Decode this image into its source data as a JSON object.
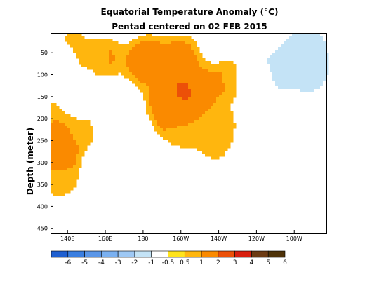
{
  "chart_data": {
    "type": "heatmap",
    "title": "Equatorial Temperature Anomaly (°C)",
    "subtitle": "Pentad centered on 02 FEB 2015",
    "ylabel": "Depth (meter)",
    "xlabel": "",
    "x_ticks": [
      "140E",
      "160E",
      "180",
      "160W",
      "140W",
      "120W",
      "100W"
    ],
    "x_tick_lon": [
      140,
      160,
      180,
      200,
      220,
      240,
      260
    ],
    "xlim_lon": [
      131,
      277
    ],
    "y_ticks": [
      50,
      100,
      150,
      200,
      250,
      300,
      350,
      400,
      450
    ],
    "ylim": [
      5,
      460
    ],
    "y_reversed": true,
    "colorbar": {
      "labels": [
        "-6",
        "-5",
        "-4",
        "-3",
        "-2",
        "-1",
        "-0.5",
        "0.5",
        "1",
        "2",
        "3",
        "4",
        "5",
        "6"
      ],
      "bins": [
        -7,
        -6,
        -5,
        -4,
        -3,
        -2,
        -1,
        -0.5,
        0.5,
        1,
        2,
        3,
        4,
        5,
        6
      ],
      "colors": [
        "#1f5fd0",
        "#3a7ee0",
        "#5a96e8",
        "#7ab0f0",
        "#9ec8f4",
        "#c4e3f6",
        "#ffffff",
        "#ffe31c",
        "#ffb60e",
        "#fa8a00",
        "#ec5008",
        "#d81e0e",
        "#6c3a12",
        "#4e3208"
      ]
    },
    "anomaly_features": [
      {
        "lon": 180,
        "depth": 75,
        "value": 1.3
      },
      {
        "lon": 184,
        "depth": 60,
        "value": 1.1
      },
      {
        "lon": 200,
        "depth": 60,
        "value": 1.5
      },
      {
        "lon": 160,
        "depth": 60,
        "value": 1.0
      },
      {
        "lon": 199,
        "depth": 150,
        "value": 3.1
      },
      {
        "lon": 211,
        "depth": 130,
        "value": 1.4
      },
      {
        "lon": 195,
        "depth": 130,
        "value": 1.6
      },
      {
        "lon": 192,
        "depth": 170,
        "value": 1.1
      },
      {
        "lon": 197,
        "depth": 205,
        "value": 0.9
      },
      {
        "lon": 204,
        "depth": 220,
        "value": 0.8
      },
      {
        "lon": 221,
        "depth": 210,
        "value": 0.7
      },
      {
        "lon": 226,
        "depth": 110,
        "value": 1.0
      },
      {
        "lon": 218,
        "depth": 260,
        "value": 0.6
      },
      {
        "lon": 141,
        "depth": 115,
        "value": 0.8
      },
      {
        "lon": 135,
        "depth": 250,
        "value": 1.6
      },
      {
        "lon": 135,
        "depth": 300,
        "value": 1.2
      },
      {
        "lon": 139,
        "depth": 160,
        "value": 0.9
      },
      {
        "lon": 136,
        "depth": 340,
        "value": 0.7
      },
      {
        "lon": 147,
        "depth": 230,
        "value": 0.7
      },
      {
        "lon": 144,
        "depth": 150,
        "value": -0.7
      },
      {
        "lon": 143,
        "depth": 30,
        "value": 0.6
      },
      {
        "lon": 133,
        "depth": 90,
        "value": -0.7
      },
      {
        "lon": 265,
        "depth": 60,
        "value": -2.6
      },
      {
        "lon": 255,
        "depth": 85,
        "value": -1.7
      },
      {
        "lon": 269,
        "depth": 100,
        "value": -1.4
      },
      {
        "lon": 245,
        "depth": 115,
        "value": -0.7
      },
      {
        "lon": 238,
        "depth": 105,
        "value": -0.6
      },
      {
        "lon": 268,
        "depth": 35,
        "value": -1.0
      }
    ]
  }
}
